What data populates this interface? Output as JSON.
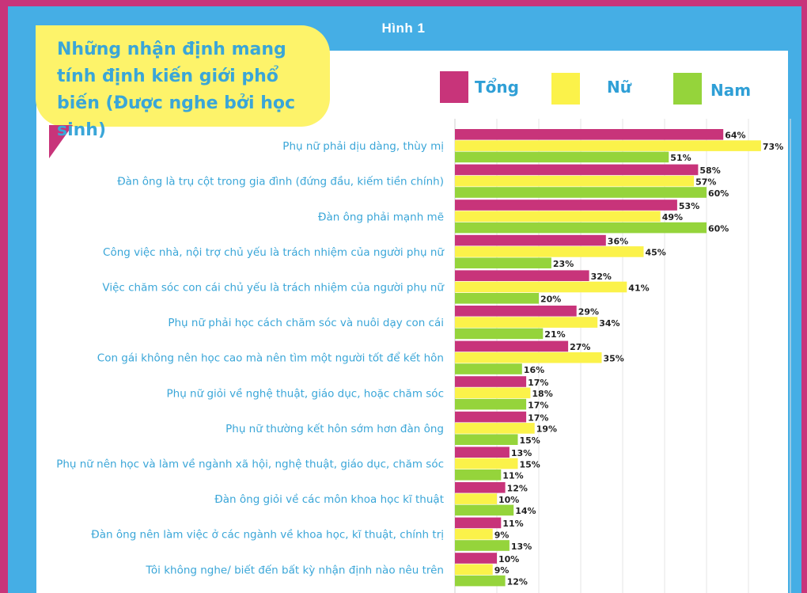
{
  "figure_label": "Hình 1",
  "title": "Những nhận định mang tính định kiến giới phổ biến (Được nghe bởi học sinh)",
  "colors": {
    "frame": "#c8347a",
    "panel": "#45aee5",
    "title_bubble": "#fdf36a",
    "text": "#3aa6d8",
    "tong": "#c8347a",
    "nu": "#fbf24a",
    "nam": "#95d43b"
  },
  "chart_data": {
    "type": "bar",
    "orientation": "horizontal",
    "title": "Những nhận định mang tính định kiến giới phổ biến (Được nghe bởi học sinh)",
    "legend_position": "top-right",
    "grid": true,
    "xlim": [
      0,
      80
    ],
    "value_suffix": "%",
    "categories": [
      "Phụ nữ phải dịu dàng, thùy mị",
      "Đàn ông là trụ cột trong gia đình (đứng đầu, kiếm tiền chính)",
      "Đàn ông phải mạnh mẽ",
      "Công việc nhà, nội trợ chủ yếu là trách nhiệm của người phụ nữ",
      "Việc chăm sóc con cái chủ yếu là trách nhiệm của người phụ nữ",
      "Phụ nữ phải học cách chăm sóc và nuôi dạy con cái",
      "Con gái không nên học cao mà nên tìm một người tốt để kết hôn",
      "Phụ nữ giỏi về nghệ thuật, giáo dục, hoặc chăm sóc",
      "Phụ nữ thường kết hôn sớm hơn đàn ông",
      "Phụ nữ nên học và làm về ngành xã hội, nghệ thuật, giáo dục, chăm sóc",
      "Đàn ông giỏi về các môn khoa học kĩ thuật",
      "Đàn ông nên làm việc ở các ngành về khoa học, kĩ thuật, chính trị",
      "Tôi không nghe/ biết đến bất kỳ nhận định nào nêu trên"
    ],
    "series": [
      {
        "name": "Tổng",
        "color": "#c8347a",
        "values": [
          64,
          58,
          53,
          36,
          32,
          29,
          27,
          17,
          17,
          13,
          12,
          11,
          10
        ]
      },
      {
        "name": "Nữ",
        "color": "#fbf24a",
        "values": [
          73,
          57,
          49,
          45,
          41,
          34,
          35,
          18,
          19,
          15,
          10,
          9,
          9
        ]
      },
      {
        "name": "Nam",
        "color": "#95d43b",
        "values": [
          51,
          60,
          60,
          23,
          20,
          21,
          16,
          17,
          15,
          11,
          14,
          13,
          12
        ]
      }
    ]
  }
}
